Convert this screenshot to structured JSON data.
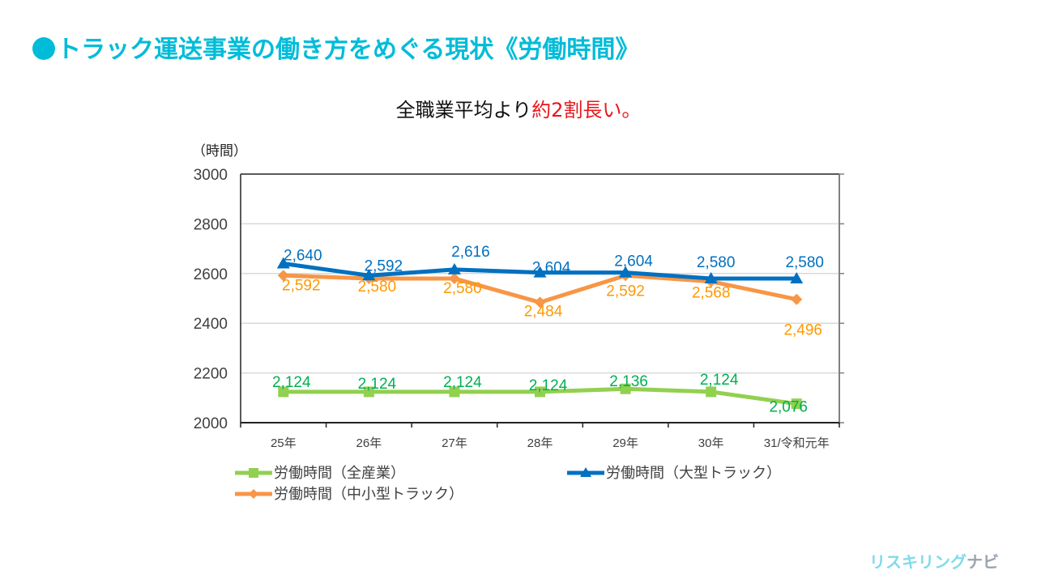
{
  "page": {
    "title": "トラック運送事業の働き方をめぐる現状《労働時間》",
    "subtitle_prefix": "全職業平均より",
    "subtitle_highlight": "約2割長い。",
    "brand_part1": "リスキリング",
    "brand_part2": "ナビ"
  },
  "colors": {
    "title": "#00bcd9",
    "highlight": "#e8161b",
    "all_industries_line": "#92d050",
    "all_industries_label": "#00b050",
    "large_truck_line": "#0070c0",
    "large_truck_label": "#0070c0",
    "small_truck_line": "#f79646",
    "small_truck_label": "#ff9900"
  },
  "chart_data": {
    "type": "line",
    "title": "",
    "ylabel": "（時間）",
    "xlabel": "",
    "ylim": [
      2000,
      3000
    ],
    "yticks": [
      2000,
      2200,
      2400,
      2600,
      2800,
      3000
    ],
    "grid": true,
    "legend_position": "bottom",
    "categories": [
      "25年",
      "26年",
      "27年",
      "28年",
      "29年",
      "30年",
      "31/令和元年"
    ],
    "series": [
      {
        "name": "労働時間（全産業）",
        "marker": "square",
        "values": [
          2124,
          2124,
          2124,
          2124,
          2136,
          2124,
          2076
        ],
        "labels": [
          "2,124",
          "2,124",
          "2,124",
          "2,124",
          "2,136",
          "2,124",
          "2,076"
        ]
      },
      {
        "name": "労働時間（大型トラック）",
        "marker": "triangle",
        "values": [
          2640,
          2592,
          2616,
          2604,
          2604,
          2580,
          2580
        ],
        "labels": [
          "2,640",
          "2,592",
          "2,616",
          "2,604",
          "2,604",
          "2,580",
          "2,580"
        ]
      },
      {
        "name": "労働時間（中小型トラック）",
        "marker": "diamond",
        "values": [
          2592,
          2580,
          2580,
          2484,
          2592,
          2568,
          2496
        ],
        "labels": [
          "2,592",
          "2,580",
          "2,580",
          "2,484",
          "2,592",
          "2,568",
          "2,496"
        ]
      }
    ]
  }
}
